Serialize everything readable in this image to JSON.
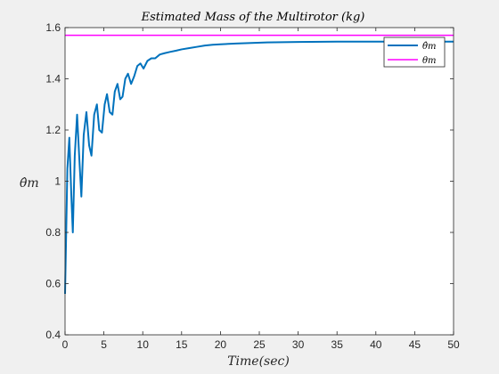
{
  "chart_data": {
    "type": "line",
    "title": "Estimated Mass of the Multirotor (kg)",
    "xlabel": "Time(sec)",
    "ylabel": "θ̂m",
    "xlim": [
      0,
      50
    ],
    "ylim": [
      0.4,
      1.6
    ],
    "xticks": [
      0,
      5,
      10,
      15,
      20,
      25,
      30,
      35,
      40,
      45,
      50
    ],
    "yticks": [
      0.4,
      0.6,
      0.8,
      1.0,
      1.2,
      1.4,
      1.6
    ],
    "ytick_labels": [
      "0.4",
      "0.6",
      "0.8",
      "1",
      "1.2",
      "1.4",
      "1.6"
    ],
    "grid": false,
    "legend_position": "top-right",
    "series": [
      {
        "name": "θ̂m",
        "color": "#0072BD",
        "x": [
          0,
          0.3,
          0.55,
          0.8,
          1.0,
          1.25,
          1.55,
          1.85,
          2.1,
          2.4,
          2.75,
          3.1,
          3.4,
          3.75,
          4.1,
          4.4,
          4.75,
          5.1,
          5.4,
          5.75,
          6.1,
          6.4,
          6.75,
          7.1,
          7.4,
          7.75,
          8.1,
          8.5,
          8.9,
          9.3,
          9.7,
          10.1,
          10.6,
          11.1,
          11.6,
          12.2,
          12.8,
          13.5,
          14.3,
          15,
          16,
          17,
          18,
          19,
          20,
          22,
          24,
          26,
          28,
          30,
          35,
          40,
          45,
          50
        ],
        "values": [
          0.56,
          1.05,
          1.17,
          0.95,
          0.8,
          1.1,
          1.26,
          1.08,
          0.94,
          1.18,
          1.27,
          1.14,
          1.1,
          1.26,
          1.3,
          1.2,
          1.19,
          1.3,
          1.34,
          1.27,
          1.26,
          1.35,
          1.38,
          1.32,
          1.33,
          1.4,
          1.42,
          1.38,
          1.41,
          1.45,
          1.46,
          1.44,
          1.47,
          1.48,
          1.48,
          1.495,
          1.5,
          1.505,
          1.51,
          1.515,
          1.52,
          1.525,
          1.53,
          1.533,
          1.535,
          1.538,
          1.54,
          1.542,
          1.543,
          1.544,
          1.545,
          1.545,
          1.545,
          1.545
        ]
      },
      {
        "name": "θm",
        "color": "#FF00FF",
        "x": [
          0,
          50
        ],
        "values": [
          1.57,
          1.57
        ]
      }
    ]
  }
}
